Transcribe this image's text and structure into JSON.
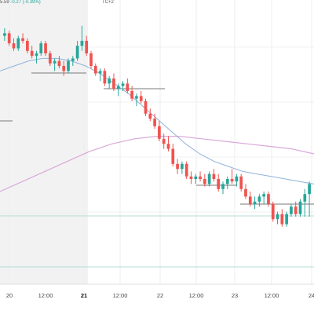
{
  "header": {
    "timezone_fragment": "TC+2",
    "price_fragment": "5.59",
    "change_fragment": "-0.27 (-0.39%)"
  },
  "colors": {
    "background": "#ffffff",
    "shaded_session": "#f2f2f2",
    "bull": "#26a69a",
    "bear": "#ef5350",
    "ma_fast": "#8fb2d9",
    "ma_slow": "#d9a8d9",
    "hline": "#7a7a7a",
    "teal_line": "#b5dcd8"
  },
  "chart_data": {
    "type": "candlestick",
    "x_ticks": [
      "20",
      "12:00",
      "21",
      "12:00",
      "22",
      "12:00",
      "23",
      "12:00",
      "24"
    ],
    "bold_ticks": [
      "21"
    ],
    "grid": true,
    "shaded_region": "before 21",
    "y_relative_range": [
      0,
      100
    ],
    "candles": [
      [
        92,
        95,
        90,
        93
      ],
      [
        93,
        94,
        88,
        89
      ],
      [
        89,
        91,
        86,
        87
      ],
      [
        87,
        92,
        86,
        91
      ],
      [
        91,
        93,
        89,
        90
      ],
      [
        90,
        91,
        85,
        86
      ],
      [
        86,
        88,
        83,
        84
      ],
      [
        84,
        86,
        81,
        85
      ],
      [
        85,
        90,
        84,
        89
      ],
      [
        89,
        90,
        84,
        85
      ],
      [
        85,
        86,
        80,
        81
      ],
      [
        81,
        83,
        78,
        82
      ],
      [
        82,
        84,
        79,
        80
      ],
      [
        80,
        82,
        76,
        78
      ],
      [
        78,
        83,
        77,
        82
      ],
      [
        82,
        84,
        80,
        83
      ],
      [
        83,
        90,
        82,
        88
      ],
      [
        88,
        96,
        86,
        90
      ],
      [
        90,
        92,
        84,
        85
      ],
      [
        85,
        86,
        79,
        80
      ],
      [
        80,
        81,
        76,
        77
      ],
      [
        77,
        79,
        74,
        78
      ],
      [
        78,
        79,
        72,
        73
      ],
      [
        73,
        76,
        71,
        75
      ],
      [
        75,
        77,
        70,
        71
      ],
      [
        71,
        73,
        68,
        72
      ],
      [
        72,
        74,
        70,
        73
      ],
      [
        73,
        75,
        69,
        70
      ],
      [
        70,
        72,
        66,
        67
      ],
      [
        67,
        69,
        64,
        68
      ],
      [
        68,
        70,
        65,
        66
      ],
      [
        66,
        67,
        60,
        61
      ],
      [
        61,
        63,
        58,
        59
      ],
      [
        59,
        61,
        55,
        56
      ],
      [
        56,
        58,
        50,
        51
      ],
      [
        51,
        53,
        47,
        49
      ],
      [
        49,
        52,
        46,
        47
      ],
      [
        47,
        49,
        40,
        41
      ],
      [
        41,
        43,
        37,
        39
      ],
      [
        39,
        42,
        37,
        41
      ],
      [
        41,
        42,
        35,
        36
      ],
      [
        36,
        38,
        33,
        35
      ],
      [
        35,
        37,
        33,
        36
      ],
      [
        36,
        38,
        34,
        35
      ],
      [
        35,
        37,
        32,
        33
      ],
      [
        33,
        38,
        32,
        37
      ],
      [
        37,
        39,
        34,
        35
      ],
      [
        35,
        37,
        30,
        31
      ],
      [
        31,
        34,
        29,
        33
      ],
      [
        33,
        36,
        31,
        35
      ],
      [
        35,
        39,
        33,
        34
      ],
      [
        34,
        37,
        32,
        36
      ],
      [
        36,
        37,
        30,
        31
      ],
      [
        31,
        33,
        27,
        28
      ],
      [
        28,
        30,
        24,
        25
      ],
      [
        25,
        28,
        23,
        26
      ],
      [
        26,
        29,
        24,
        28
      ],
      [
        28,
        30,
        25,
        29
      ],
      [
        29,
        30,
        24,
        25
      ],
      [
        25,
        26,
        18,
        19
      ],
      [
        19,
        22,
        17,
        21
      ],
      [
        21,
        23,
        16,
        17
      ],
      [
        17,
        22,
        16,
        21
      ],
      [
        21,
        25,
        20,
        24
      ],
      [
        24,
        26,
        20,
        21
      ],
      [
        21,
        27,
        20,
        26
      ],
      [
        26,
        31,
        20,
        29
      ],
      [
        29,
        34,
        20,
        33
      ]
    ],
    "ma_fast": [
      78,
      80,
      82,
      83,
      83,
      82,
      80,
      77,
      73,
      69,
      64,
      59,
      54,
      49,
      45,
      42,
      40,
      38,
      37,
      36,
      35,
      34,
      33
    ],
    "ma_slow": [
      30,
      34,
      38,
      42,
      46,
      49,
      51,
      52,
      52,
      51,
      50,
      49,
      48,
      47,
      45
    ]
  }
}
